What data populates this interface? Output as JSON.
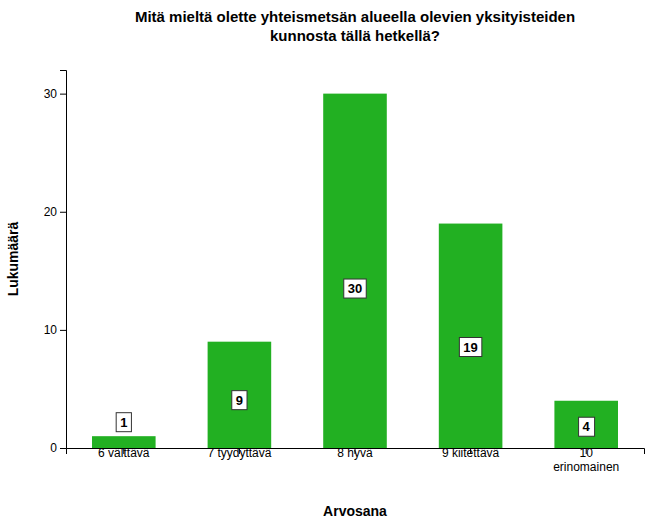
{
  "chart_data": {
    "type": "bar",
    "title": "Mitä mieltä olette yhteismetsän alueella olevien yksityisteiden\nkunnosta tällä hetkellä?",
    "xlabel": "Arvosana",
    "ylabel": "Lukumäärä",
    "categories": [
      "6 välttävä",
      "7 tyydyttävä",
      "8 hyvä",
      "9 kiitettävä",
      "10\nerinomainen"
    ],
    "values": [
      1,
      9,
      30,
      19,
      4
    ],
    "color": "#22b022",
    "ylim": [
      0,
      32
    ],
    "yticks": [
      0,
      10,
      20,
      30
    ],
    "grid": false,
    "data_labels": true
  }
}
